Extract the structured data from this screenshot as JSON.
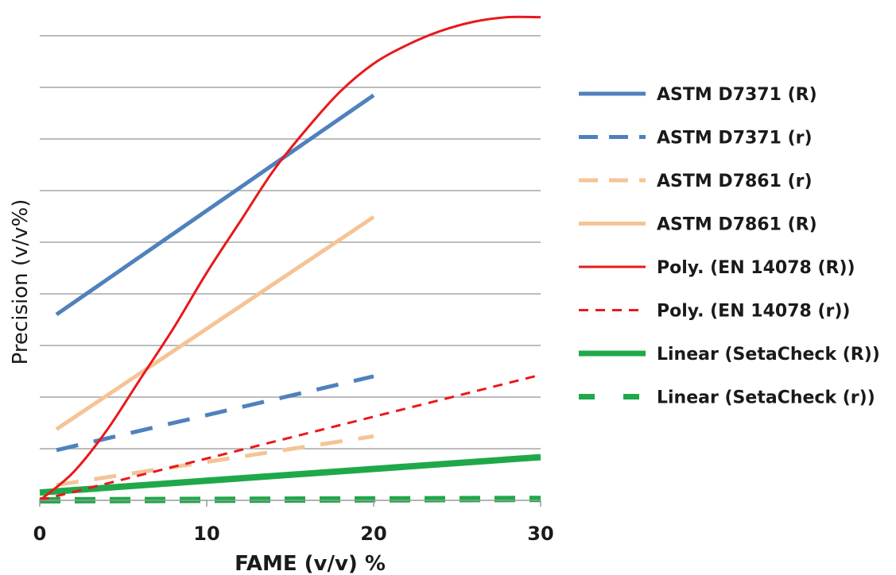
{
  "chart_data": {
    "type": "line",
    "title": "",
    "xlabel": "FAME (v/v) %",
    "ylabel": "Precision (v/v%)",
    "xlim": [
      0,
      30
    ],
    "ylim": [
      0,
      1
    ],
    "x_ticks": [
      "0",
      "10",
      "20",
      "30"
    ],
    "y_tick_labels_shown": false,
    "grid": "horizontal",
    "legend_position": "right",
    "series": [
      {
        "name": "ASTM D7371 (R)",
        "color": "#4f81bd",
        "style": "solid",
        "width": 5,
        "x": [
          1,
          20
        ],
        "y": [
          0.4,
          0.872
        ]
      },
      {
        "name": "ASTM D7371 (r)",
        "color": "#4f81bd",
        "style": "dashed",
        "width": 5,
        "x": [
          1,
          20
        ],
        "y": [
          0.108,
          0.267
        ]
      },
      {
        "name": "ASTM D7861 (r)",
        "color": "#f4c496",
        "style": "dashed",
        "width": 5,
        "x": [
          1,
          20
        ],
        "y": [
          0.033,
          0.138
        ]
      },
      {
        "name": "ASTM D7861 (R)",
        "color": "#f4c496",
        "style": "solid",
        "width": 5,
        "x": [
          1,
          20
        ],
        "y": [
          0.153,
          0.61
        ]
      },
      {
        "name": "Poly. (EN 14078 (R))",
        "color": "#e8191c",
        "style": "solid",
        "width": 3,
        "x": [
          0,
          2,
          4,
          6,
          8,
          10,
          12,
          14,
          16,
          18,
          20,
          22,
          24,
          26,
          28,
          30
        ],
        "y": [
          0.0,
          0.06,
          0.15,
          0.26,
          0.37,
          0.49,
          0.6,
          0.71,
          0.8,
          0.88,
          0.94,
          0.98,
          1.01,
          1.03,
          1.04,
          1.04
        ]
      },
      {
        "name": "Poly. (EN 14078 (r))",
        "color": "#e8191c",
        "style": "dashed",
        "width": 3,
        "x": [
          0,
          30
        ],
        "y": [
          0.0,
          0.27
        ]
      },
      {
        "name": "Linear (SetaCheck (R))",
        "color": "#1fa84a",
        "style": "solid",
        "width": 8,
        "x": [
          0,
          30
        ],
        "y": [
          0.017,
          0.093
        ]
      },
      {
        "name": "Linear (SetaCheck (r))",
        "color": "#1fa84a",
        "style": "dashed",
        "width": 8,
        "x": [
          0,
          30
        ],
        "y": [
          0.0,
          0.003
        ]
      }
    ]
  }
}
